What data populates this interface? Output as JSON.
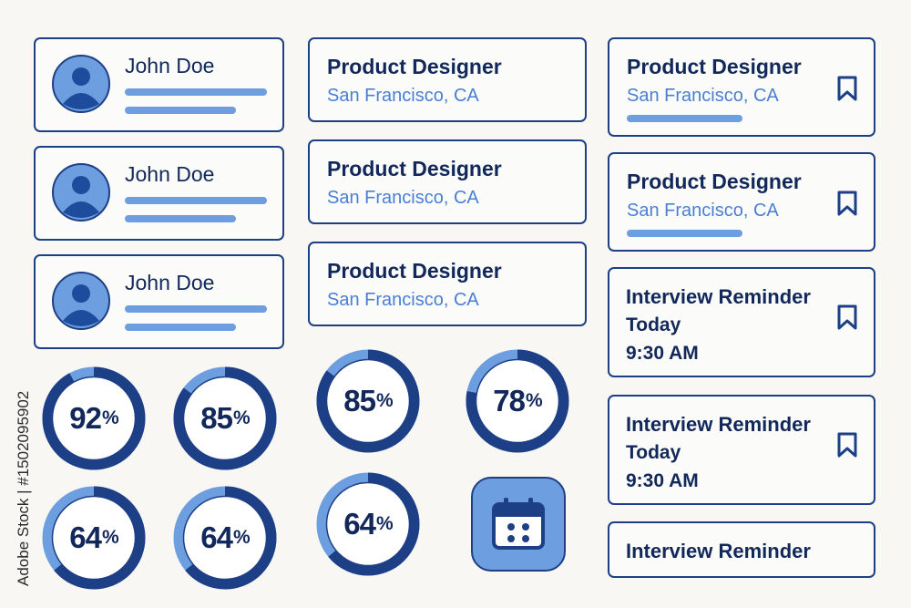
{
  "colors": {
    "dark": "#1d3f86",
    "light": "#6d9ee0",
    "text": "#12285a",
    "accent": "#4a7fd1"
  },
  "profiles": [
    {
      "name": "John Doe",
      "icon": "user-avatar-icon"
    },
    {
      "name": "John Doe",
      "icon": "user-avatar-icon"
    },
    {
      "name": "John Doe",
      "icon": "user-avatar-icon"
    }
  ],
  "jobs": [
    {
      "title": "Product Designer",
      "location": "San Francisco, CA"
    },
    {
      "title": "Product Designer",
      "location": "San Francisco, CA"
    },
    {
      "title": "Product Designer",
      "location": "San Francisco, CA"
    }
  ],
  "saved_jobs": [
    {
      "title": "Product Designer",
      "location": "San Francisco, CA",
      "icon": "bookmark-icon"
    },
    {
      "title": "Product Designer",
      "location": "San Francisco, CA",
      "icon": "bookmark-icon"
    }
  ],
  "reminders": [
    {
      "title": "Interview Reminder",
      "day": "Today",
      "time": "9:30 AM",
      "icon": "bookmark-icon"
    },
    {
      "title": "Interview Reminder",
      "day": "Today",
      "time": "9:30 AM",
      "icon": "bookmark-icon"
    },
    {
      "title": "Interview Reminder"
    }
  ],
  "progress": [
    {
      "value": "92",
      "unit": "%",
      "fraction": 0.92
    },
    {
      "value": "85",
      "unit": "%",
      "fraction": 0.85
    },
    {
      "value": "85",
      "unit": "%",
      "fraction": 0.85
    },
    {
      "value": "78",
      "unit": "%",
      "fraction": 0.78
    },
    {
      "value": "64",
      "unit": "%",
      "fraction": 0.64
    },
    {
      "value": "64",
      "unit": "%",
      "fraction": 0.64
    },
    {
      "value": "64",
      "unit": "%",
      "fraction": 0.64
    }
  ],
  "calendar_icon": "calendar-icon",
  "watermark": "Adobe Stock | #1502095902"
}
